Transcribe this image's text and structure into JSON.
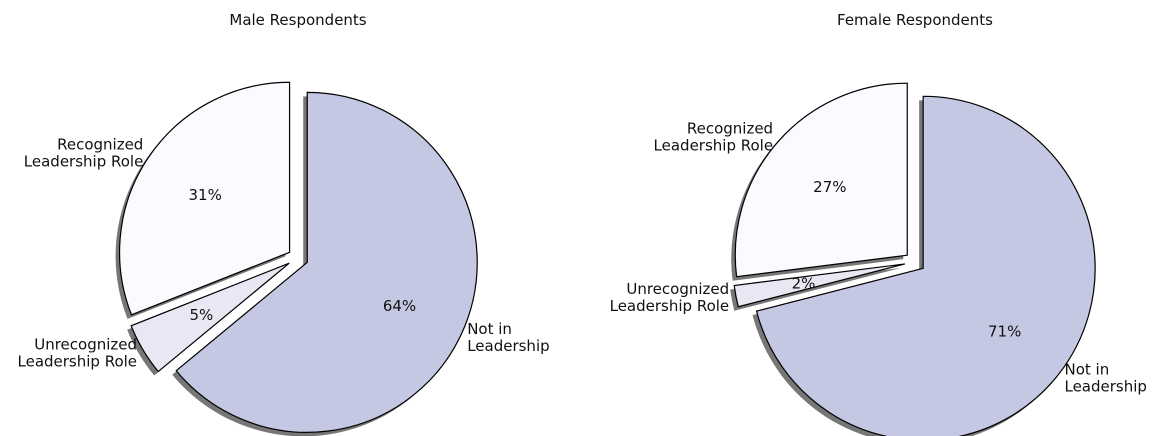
{
  "chart_data": [
    {
      "type": "pie",
      "title": "Male Respondents",
      "categories": [
        "Not in\nLeadership",
        "Unrecognized\nLeadership Role",
        "Recognized\nLeadership Role"
      ],
      "values": [
        64,
        5,
        31
      ],
      "value_labels": [
        "64%",
        "5%",
        "31%"
      ],
      "colors": [
        "#c5c8e2",
        "#e8e8f4",
        "#fafaff"
      ]
    },
    {
      "type": "pie",
      "title": "Female Respondents",
      "categories": [
        "Not in\nLeadership",
        "Unrecognized\nLeadership Role",
        "Recognized\nLeadership Role"
      ],
      "values": [
        71,
        2,
        27
      ],
      "value_labels": [
        "71%",
        "2%",
        "27%"
      ],
      "colors": [
        "#c5c8e2",
        "#e8e8f4",
        "#fafaff"
      ]
    }
  ]
}
